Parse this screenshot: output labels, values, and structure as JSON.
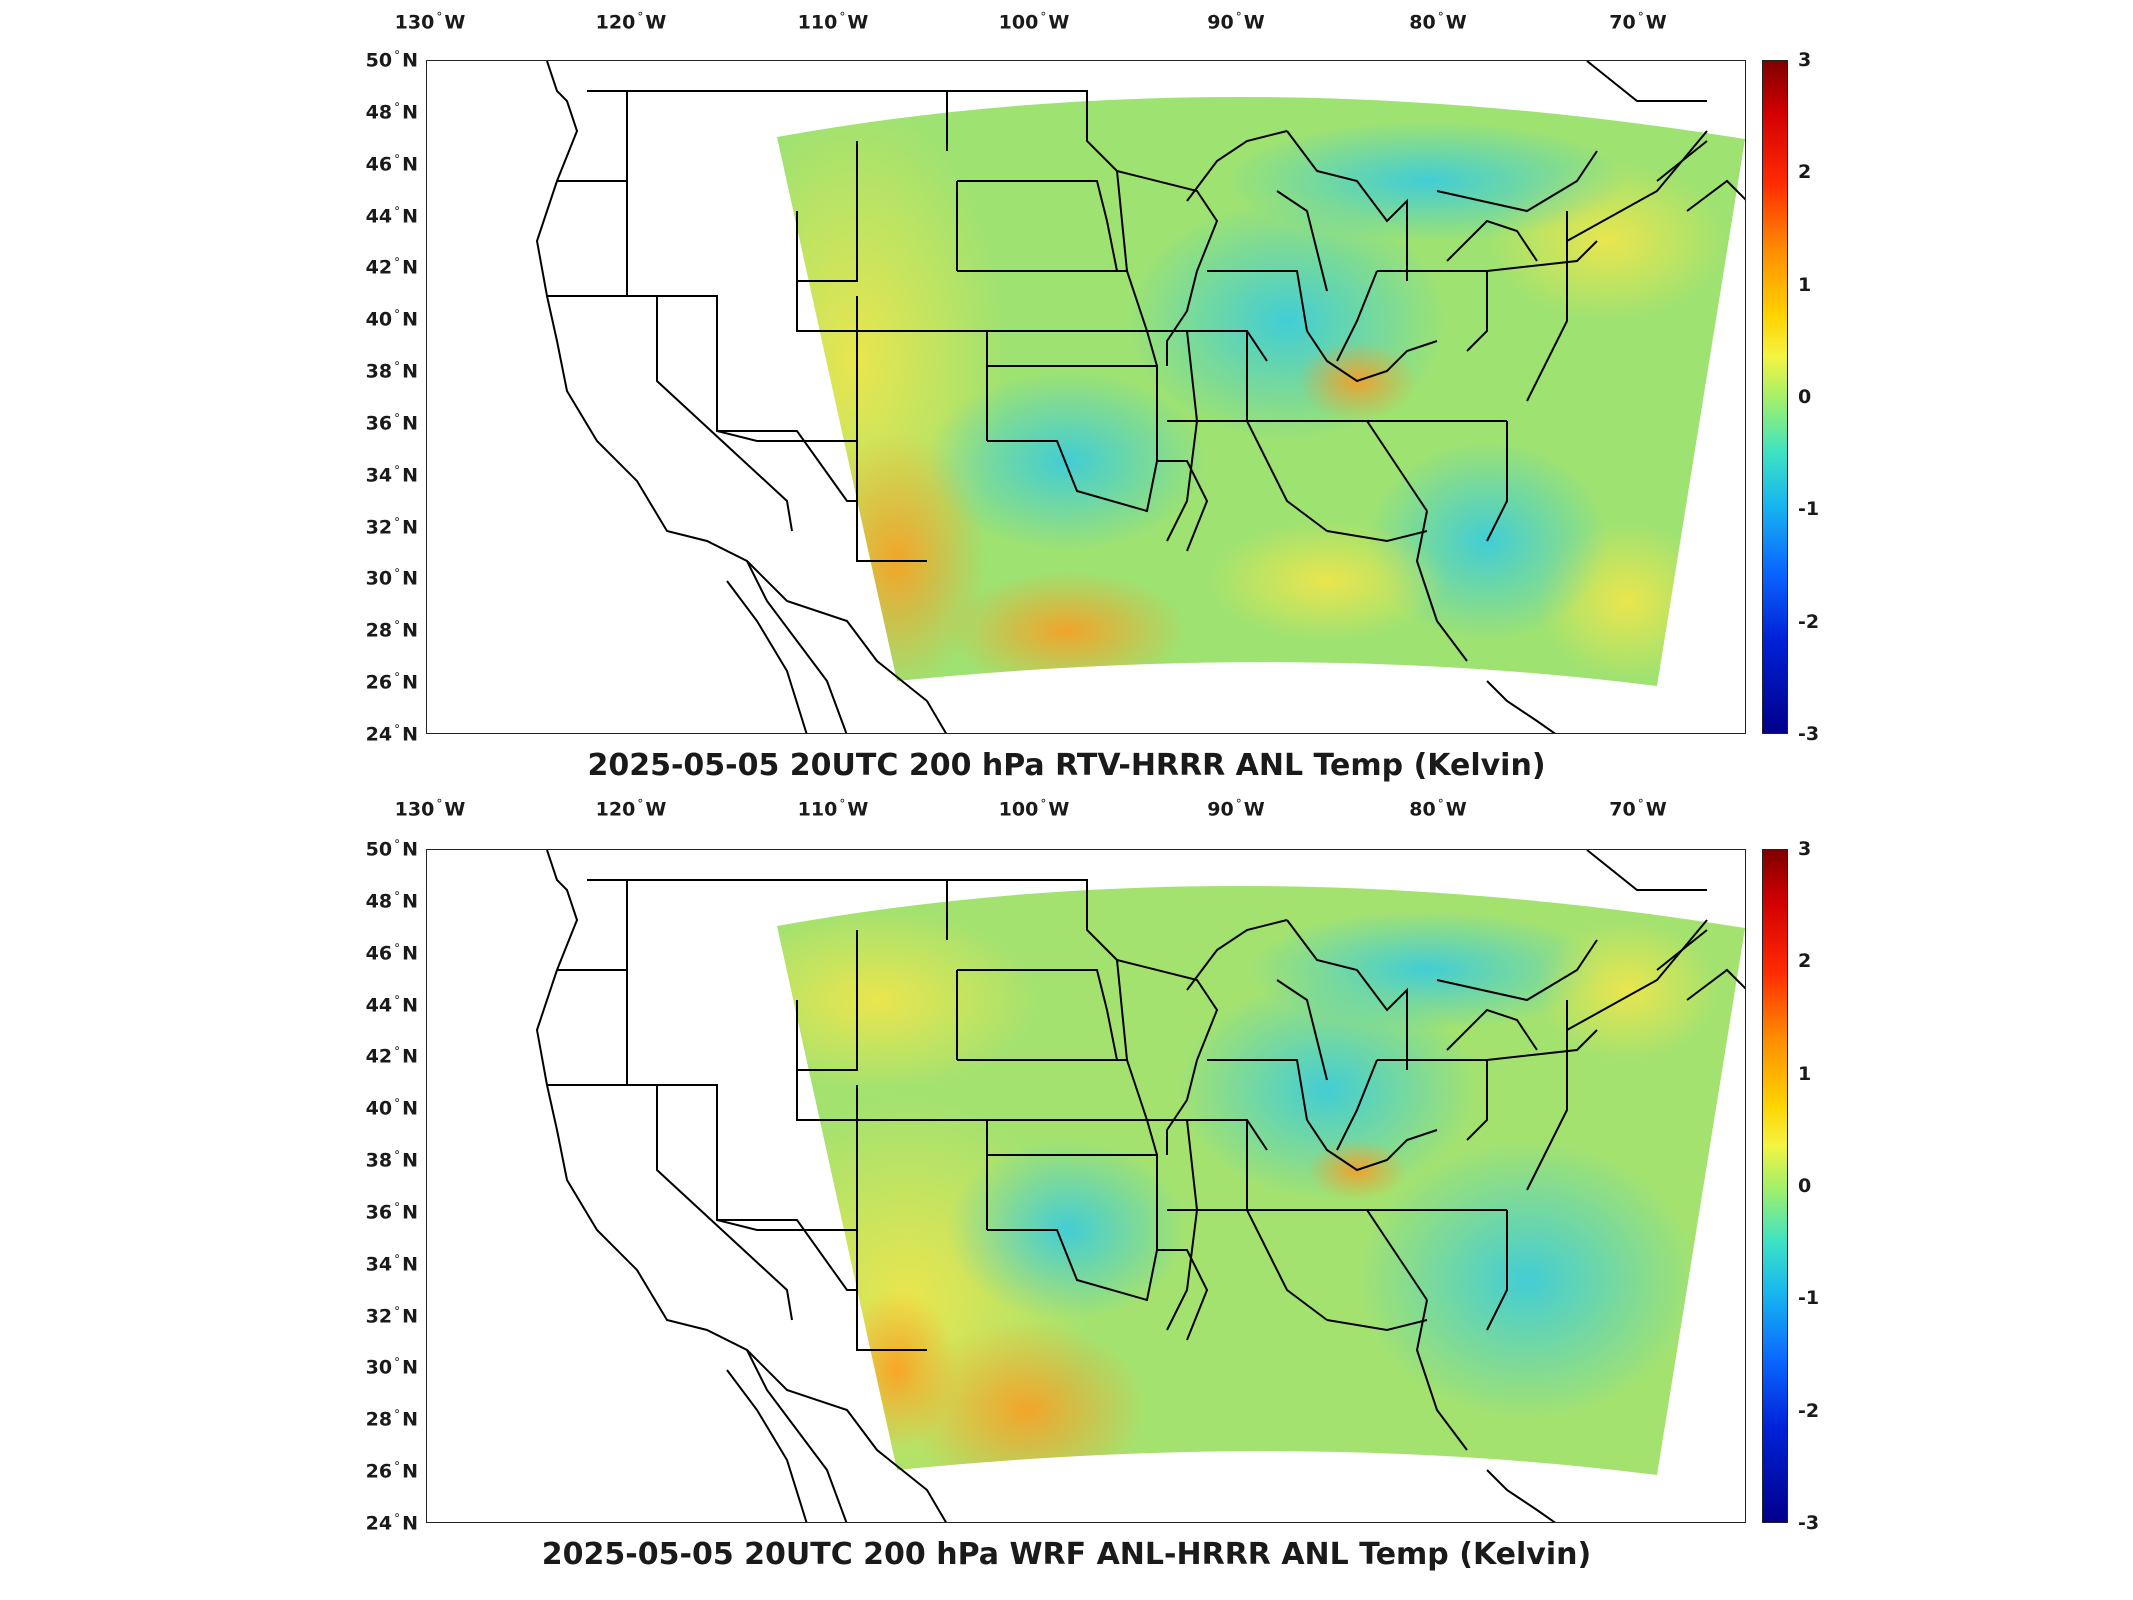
{
  "panels": [
    {
      "title": "2025-05-05 20UTC 200 hPa RTV-HRRR ANL Temp (Kelvin)"
    },
    {
      "title": "2025-05-05 20UTC 200 hPa WRF ANL-HRRR ANL Temp (Kelvin)"
    }
  ],
  "longitude_ticks": [
    {
      "value": "130",
      "hemi": "W"
    },
    {
      "value": "120",
      "hemi": "W"
    },
    {
      "value": "110",
      "hemi": "W"
    },
    {
      "value": "100",
      "hemi": "W"
    },
    {
      "value": "90",
      "hemi": "W"
    },
    {
      "value": "80",
      "hemi": "W"
    },
    {
      "value": "70",
      "hemi": "W"
    }
  ],
  "latitude_ticks": [
    {
      "value": "50",
      "hemi": "N"
    },
    {
      "value": "48",
      "hemi": "N"
    },
    {
      "value": "46",
      "hemi": "N"
    },
    {
      "value": "44",
      "hemi": "N"
    },
    {
      "value": "42",
      "hemi": "N"
    },
    {
      "value": "40",
      "hemi": "N"
    },
    {
      "value": "38",
      "hemi": "N"
    },
    {
      "value": "36",
      "hemi": "N"
    },
    {
      "value": "34",
      "hemi": "N"
    },
    {
      "value": "32",
      "hemi": "N"
    },
    {
      "value": "30",
      "hemi": "N"
    },
    {
      "value": "28",
      "hemi": "N"
    },
    {
      "value": "26",
      "hemi": "N"
    },
    {
      "value": "24",
      "hemi": "N"
    }
  ],
  "colorbar": {
    "ticks": [
      "3",
      "2",
      "1",
      "0",
      "-1",
      "-2",
      "-3"
    ],
    "range": [
      -3,
      3
    ],
    "colormap": "jet"
  },
  "colors": {
    "field_warm": "#f2e64a",
    "field_neutral": "#8fe07a",
    "field_cool": "#48d6d0",
    "field_hot": "#ff9a1f",
    "border_lines": "#000000"
  }
}
